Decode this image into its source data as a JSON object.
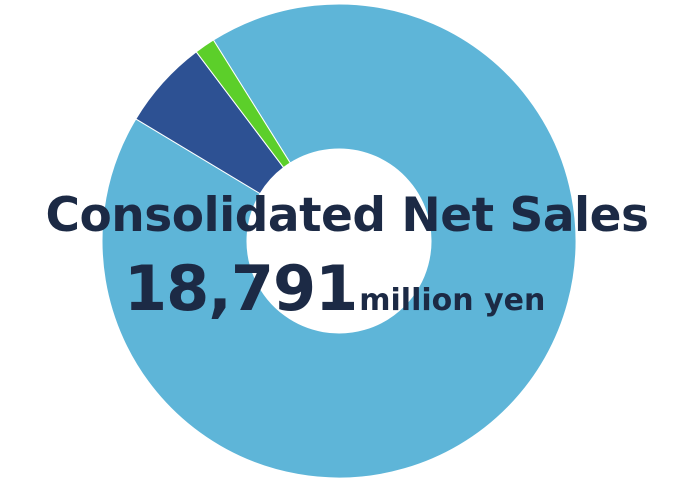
{
  "chart_data": {
    "type": "pie",
    "variant": "donut",
    "slices": [
      {
        "value": 92.5,
        "color": "#5eb5d8"
      },
      {
        "value": 6.1,
        "color": "#2d5193"
      },
      {
        "value": 1.4,
        "color": "#5ccf2a"
      }
    ],
    "center_title": "Consolidated Net Sales",
    "center_value": "18,791",
    "center_unit": "million yen"
  }
}
